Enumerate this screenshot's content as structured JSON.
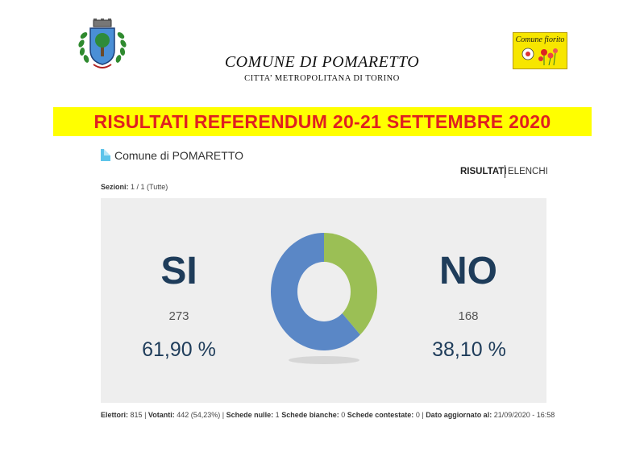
{
  "header": {
    "title": "COMUNE DI POMARETTO",
    "subtitle": "CITTA’ METROPOLITANA DI TORINO"
  },
  "flower_logo": {
    "title": "Comune fiorito"
  },
  "banner": {
    "text": "RISULTATI REFERENDUM 20-21 SETTEMBRE 2020"
  },
  "panel_header": {
    "comune_label": "Comune di POMARETTO",
    "nav_results": "RISULTATI",
    "nav_lists": "ELENCHI",
    "sections_label": "Sezioni:",
    "sections_value": "1 / 1 (Tutte)"
  },
  "results": {
    "yes": {
      "label": "SI",
      "count": "273",
      "percent": "61,90 %"
    },
    "no": {
      "label": "NO",
      "count": "168",
      "percent": "38,10 %"
    }
  },
  "chart_data": {
    "type": "pie",
    "categories": [
      "SI",
      "NO"
    ],
    "values": [
      61.9,
      38.1
    ],
    "colors": [
      "#5a87c6",
      "#9bbf55"
    ],
    "donut": true
  },
  "footer": {
    "electors_label": "Elettori:",
    "electors_value": "815",
    "voters_label": "Votanti:",
    "voters_value": "442 (54,23%)",
    "null_label": "Schede nulle:",
    "null_value": "1",
    "blank_label": "Schede bianche:",
    "blank_value": "0",
    "contested_label": "Schede contestate:",
    "contested_value": "0",
    "updated_label": "Dato aggiornato al:",
    "updated_value": "21/09/2020 - 16:58"
  }
}
